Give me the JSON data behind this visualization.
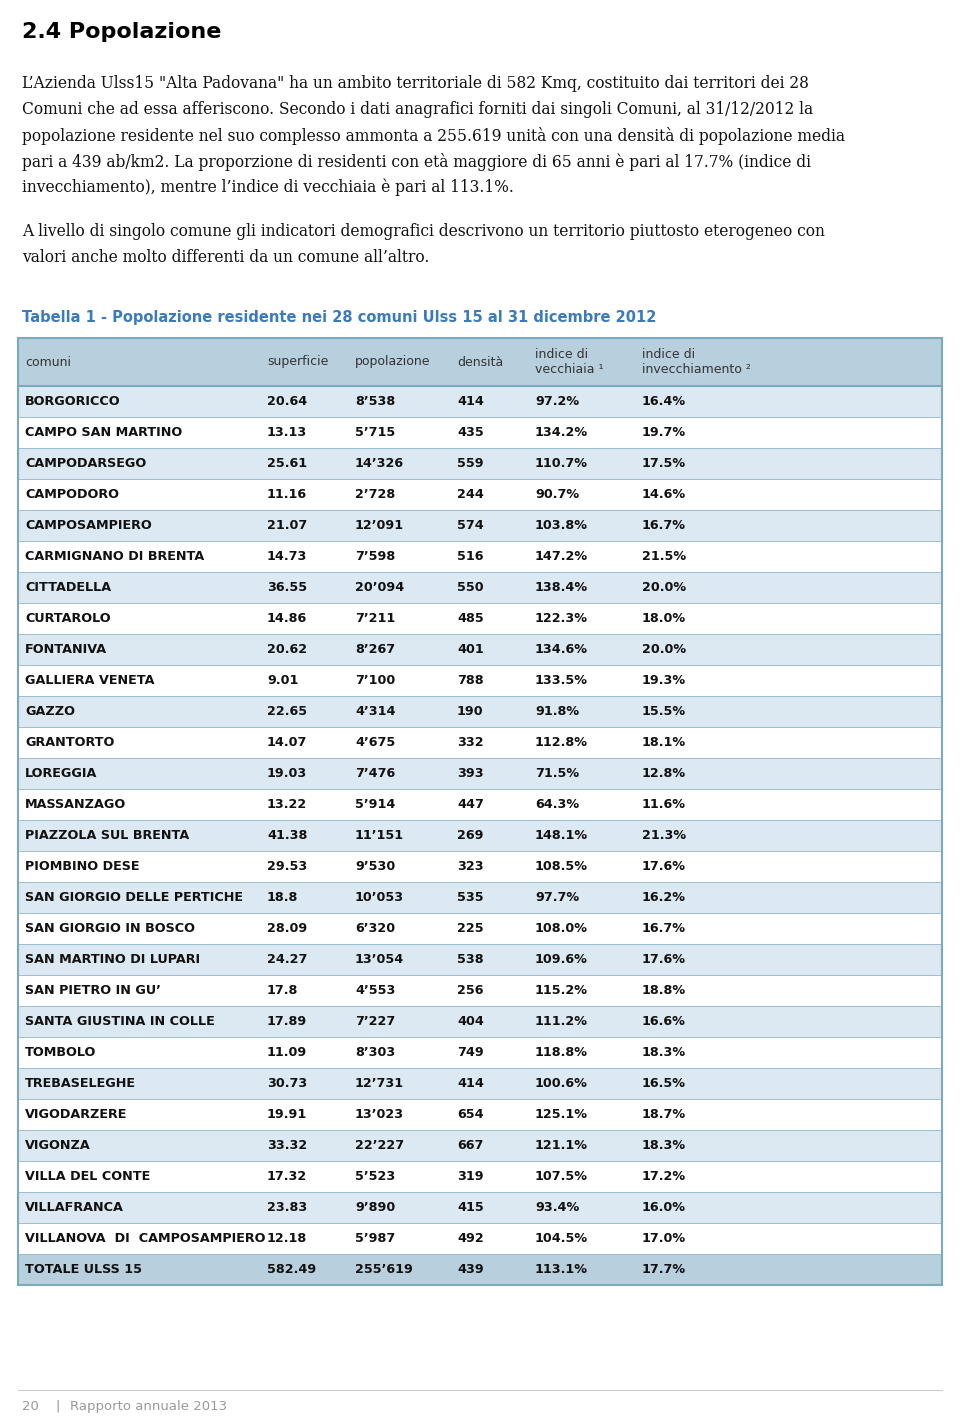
{
  "title": "2.4 Popolazione",
  "table_title": "Tabella 1 - Popolazione residente nei 28 comuni Ulss 15 al 31 dicembre 2012",
  "col_headers": [
    "comuni",
    "superficie",
    "popolazione",
    "densità",
    "indice di\nvecchiaia ¹",
    "indice di\ninvecchiamento ²"
  ],
  "rows": [
    [
      "BORGORICCO",
      "20.64",
      "8’538",
      "414",
      "97.2%",
      "16.4%"
    ],
    [
      "CAMPO SAN MARTINO",
      "13.13",
      "5’715",
      "435",
      "134.2%",
      "19.7%"
    ],
    [
      "CAMPODARSEGO",
      "25.61",
      "14’326",
      "559",
      "110.7%",
      "17.5%"
    ],
    [
      "CAMPODORO",
      "11.16",
      "2’728",
      "244",
      "90.7%",
      "14.6%"
    ],
    [
      "CAMPOSAMPIERO",
      "21.07",
      "12’091",
      "574",
      "103.8%",
      "16.7%"
    ],
    [
      "CARMIGNANO DI BRENTA",
      "14.73",
      "7’598",
      "516",
      "147.2%",
      "21.5%"
    ],
    [
      "CITTADELLA",
      "36.55",
      "20’094",
      "550",
      "138.4%",
      "20.0%"
    ],
    [
      "CURTAROLO",
      "14.86",
      "7’211",
      "485",
      "122.3%",
      "18.0%"
    ],
    [
      "FONTANIVA",
      "20.62",
      "8’267",
      "401",
      "134.6%",
      "20.0%"
    ],
    [
      "GALLIERA VENETA",
      "9.01",
      "7’100",
      "788",
      "133.5%",
      "19.3%"
    ],
    [
      "GAZZO",
      "22.65",
      "4’314",
      "190",
      "91.8%",
      "15.5%"
    ],
    [
      "GRANTORTO",
      "14.07",
      "4’675",
      "332",
      "112.8%",
      "18.1%"
    ],
    [
      "LOREGGIA",
      "19.03",
      "7’476",
      "393",
      "71.5%",
      "12.8%"
    ],
    [
      "MASSANZAGO",
      "13.22",
      "5’914",
      "447",
      "64.3%",
      "11.6%"
    ],
    [
      "PIAZZOLA SUL BRENTA",
      "41.38",
      "11’151",
      "269",
      "148.1%",
      "21.3%"
    ],
    [
      "PIOMBINO DESE",
      "29.53",
      "9’530",
      "323",
      "108.5%",
      "17.6%"
    ],
    [
      "SAN GIORGIO DELLE PERTICHE",
      "18.8",
      "10’053",
      "535",
      "97.7%",
      "16.2%"
    ],
    [
      "SAN GIORGIO IN BOSCO",
      "28.09",
      "6’320",
      "225",
      "108.0%",
      "16.7%"
    ],
    [
      "SAN MARTINO DI LUPARI",
      "24.27",
      "13’054",
      "538",
      "109.6%",
      "17.6%"
    ],
    [
      "SAN PIETRO IN GU’",
      "17.8",
      "4’553",
      "256",
      "115.2%",
      "18.8%"
    ],
    [
      "SANTA GIUSTINA IN COLLE",
      "17.89",
      "7’227",
      "404",
      "111.2%",
      "16.6%"
    ],
    [
      "TOMBOLO",
      "11.09",
      "8’303",
      "749",
      "118.8%",
      "18.3%"
    ],
    [
      "TREBASELEGHE",
      "30.73",
      "12’731",
      "414",
      "100.6%",
      "16.5%"
    ],
    [
      "VIGODARZERE",
      "19.91",
      "13’023",
      "654",
      "125.1%",
      "18.7%"
    ],
    [
      "VIGONZA",
      "33.32",
      "22’227",
      "667",
      "121.1%",
      "18.3%"
    ],
    [
      "VILLA DEL CONTE",
      "17.32",
      "5’523",
      "319",
      "107.5%",
      "17.2%"
    ],
    [
      "VILLAFRANCA",
      "23.83",
      "9’890",
      "415",
      "93.4%",
      "16.0%"
    ],
    [
      "VILLANOVA  DI  CAMPOSAMPIERO",
      "12.18",
      "5’987",
      "492",
      "104.5%",
      "17.0%"
    ],
    [
      "TOTALE ULSS 15",
      "582.49",
      "255’619",
      "439",
      "113.1%",
      "17.7%"
    ]
  ],
  "header_bg": "#b8cfde",
  "row_bg_even": "#ffffff",
  "row_bg_odd": "#dce8f2",
  "row_bg_total": "#b8cfde",
  "header_text_color": "#333333",
  "row_text_color": "#111111",
  "table_title_color": "#3a7abf",
  "title_color": "#000000",
  "body_text_color": "#111111",
  "footer_color": "#999999",
  "background_color": "#ffffff"
}
